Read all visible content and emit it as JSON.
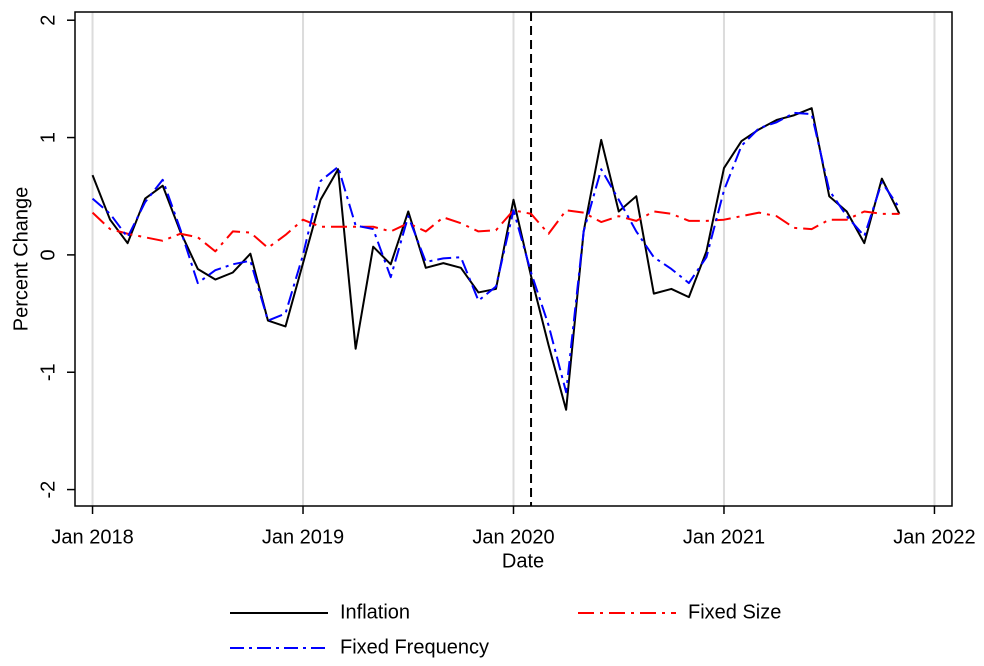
{
  "chart_data": {
    "type": "line",
    "x_label": "Date",
    "y_label": "Percent Change",
    "x": [
      "2018-01",
      "2018-02",
      "2018-03",
      "2018-04",
      "2018-05",
      "2018-06",
      "2018-07",
      "2018-08",
      "2018-09",
      "2018-10",
      "2018-11",
      "2018-12",
      "2019-01",
      "2019-02",
      "2019-03",
      "2019-04",
      "2019-05",
      "2019-06",
      "2019-07",
      "2019-08",
      "2019-09",
      "2019-10",
      "2019-11",
      "2019-12",
      "2020-01",
      "2020-02",
      "2020-03",
      "2020-04",
      "2020-05",
      "2020-06",
      "2020-07",
      "2020-08",
      "2020-09",
      "2020-10",
      "2020-11",
      "2020-12",
      "2021-01",
      "2021-02",
      "2021-03",
      "2021-04",
      "2021-05",
      "2021-06",
      "2021-07",
      "2021-08",
      "2021-09",
      "2021-10",
      "2021-11"
    ],
    "series": [
      {
        "name": "Inflation",
        "color": "#000000",
        "style": "solid",
        "values": [
          0.68,
          0.3,
          0.1,
          0.48,
          0.59,
          0.2,
          -0.12,
          -0.21,
          -0.15,
          0.01,
          -0.56,
          -0.61,
          -0.07,
          0.47,
          0.73,
          -0.8,
          0.07,
          -0.08,
          0.37,
          -0.11,
          -0.07,
          -0.11,
          -0.32,
          -0.29,
          0.47,
          -0.18,
          -0.77,
          -1.32,
          0.2,
          0.98,
          0.37,
          0.5,
          -0.33,
          -0.29,
          -0.36,
          0.03,
          0.74,
          0.97,
          1.07,
          1.15,
          1.19,
          1.25,
          0.5,
          0.37,
          0.1,
          0.65,
          0.35
        ]
      },
      {
        "name": "Fixed Size",
        "color": "#ff0000",
        "style": "longdashdot",
        "values": [
          0.36,
          0.22,
          0.18,
          0.15,
          0.12,
          0.18,
          0.15,
          0.03,
          0.2,
          0.19,
          0.06,
          0.17,
          0.3,
          0.24,
          0.24,
          0.24,
          0.24,
          0.2,
          0.27,
          0.2,
          0.32,
          0.27,
          0.2,
          0.21,
          0.38,
          0.35,
          0.18,
          0.38,
          0.36,
          0.28,
          0.33,
          0.29,
          0.37,
          0.35,
          0.29,
          0.29,
          0.3,
          0.33,
          0.36,
          0.33,
          0.23,
          0.22,
          0.3,
          0.3,
          0.37,
          0.35,
          0.35
        ]
      },
      {
        "name": "Fixed Frequency",
        "color": "#0000ff",
        "style": "dashdot",
        "values": [
          0.48,
          0.35,
          0.15,
          0.45,
          0.64,
          0.22,
          -0.24,
          -0.13,
          -0.08,
          -0.05,
          -0.56,
          -0.5,
          0.0,
          0.63,
          0.75,
          0.25,
          0.22,
          -0.19,
          0.33,
          -0.06,
          -0.03,
          -0.02,
          -0.39,
          -0.27,
          0.38,
          -0.15,
          -0.6,
          -1.17,
          0.2,
          0.73,
          0.47,
          0.2,
          -0.02,
          -0.12,
          -0.24,
          -0.02,
          0.55,
          0.93,
          1.08,
          1.13,
          1.21,
          1.2,
          0.55,
          0.33,
          0.16,
          0.62,
          0.4
        ]
      }
    ],
    "xlim": [
      "2017-12",
      "2022-02"
    ],
    "xticks": [
      {
        "value": "2018-01",
        "label": "Jan 2018"
      },
      {
        "value": "2019-01",
        "label": "Jan 2019"
      },
      {
        "value": "2020-01",
        "label": "Jan 2020"
      },
      {
        "value": "2021-01",
        "label": "Jan 2021"
      },
      {
        "value": "2022-01",
        "label": "Jan 2022"
      }
    ],
    "ylim": [
      -2.14,
      2.07
    ],
    "yticks": [
      -2,
      -1,
      0,
      1,
      2
    ],
    "grid": "x",
    "vline": "2020-02",
    "legend": "bottom"
  }
}
